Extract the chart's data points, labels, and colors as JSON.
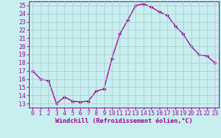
{
  "x": [
    0,
    1,
    2,
    3,
    4,
    5,
    6,
    7,
    8,
    9,
    10,
    11,
    12,
    13,
    14,
    15,
    16,
    17,
    18,
    19,
    20,
    21,
    22,
    23
  ],
  "y": [
    17,
    16,
    15.8,
    13,
    13.8,
    13.3,
    13.2,
    13.3,
    14.5,
    14.8,
    18.5,
    21.5,
    23.2,
    25.0,
    25.2,
    24.8,
    24.2,
    23.8,
    22.5,
    21.5,
    20.0,
    19.0,
    18.8,
    18.0
  ],
  "line_color": "#990099",
  "marker": "D",
  "marker_size": 2.2,
  "bg_color": "#c8eef0",
  "grid_color": "#aacccc",
  "xlabel": "Windchill (Refroidissement éolien,°C)",
  "xlim": [
    -0.5,
    23.5
  ],
  "ylim": [
    12.5,
    25.5
  ],
  "yticks": [
    13,
    14,
    15,
    16,
    17,
    18,
    19,
    20,
    21,
    22,
    23,
    24,
    25
  ],
  "xticks": [
    0,
    1,
    2,
    3,
    4,
    5,
    6,
    7,
    8,
    9,
    10,
    11,
    12,
    13,
    14,
    15,
    16,
    17,
    18,
    19,
    20,
    21,
    22,
    23
  ],
  "xlabel_fontsize": 6.5,
  "tick_fontsize": 6.0,
  "line_width": 1.0
}
